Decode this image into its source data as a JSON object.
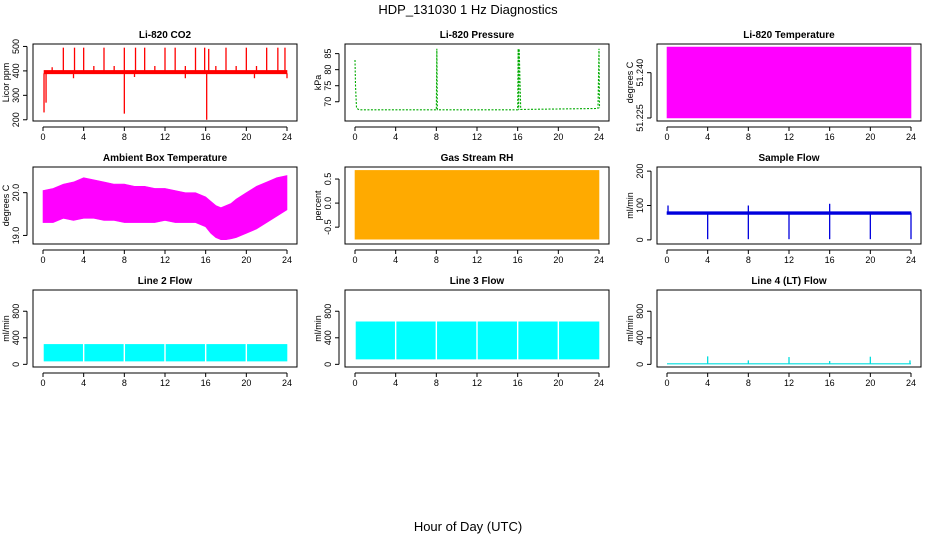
{
  "figure": {
    "title": "HDP_131030  1 Hz Diagnostics",
    "xlabel": "Hour of Day (UTC)"
  },
  "chart_data": [
    {
      "id": "co2",
      "type": "line",
      "title": "Li-820 CO2",
      "ylabel": "Licor ppm",
      "color": "#ff0000",
      "xlim": [
        0,
        24
      ],
      "ylim": [
        195,
        510
      ],
      "xticks": [
        "0",
        "4",
        "8",
        "12",
        "16",
        "20",
        "24"
      ],
      "xtick_values": [
        0,
        4,
        8,
        12,
        16,
        20,
        24
      ],
      "yticks": [
        "200",
        "300",
        "400",
        "500"
      ],
      "ytick_values": [
        200,
        300,
        400,
        500
      ],
      "series": [
        {
          "name": "band",
          "style": "band",
          "x": [
            0.1,
            24
          ],
          "low": [
            388,
            388
          ],
          "high": [
            402,
            402
          ]
        },
        {
          "name": "spikes_up",
          "style": "spikes",
          "base": 395,
          "x": [
            0.9,
            2,
            3.1,
            4,
            5,
            6,
            7,
            8,
            9.1,
            10,
            11,
            12,
            13,
            14,
            15,
            15.9,
            16.3,
            17,
            18,
            19,
            20,
            21,
            22,
            23.1,
            23.8
          ],
          "y": [
            415,
            495,
            495,
            495,
            420,
            495,
            420,
            495,
            495,
            495,
            420,
            495,
            495,
            420,
            495,
            495,
            490,
            420,
            495,
            420,
            495,
            420,
            495,
            495,
            495
          ]
        },
        {
          "name": "spikes_down",
          "style": "spikes",
          "base": 390,
          "x": [
            0.1,
            0.3,
            8,
            16.1,
            24,
            3,
            9,
            14,
            20.8
          ],
          "y": [
            230,
            270,
            225,
            200,
            370,
            370,
            375,
            370,
            370
          ]
        }
      ]
    },
    {
      "id": "pressure",
      "type": "line",
      "title": "Li-820 Pressure",
      "ylabel": "kPa",
      "color": "#00aa00",
      "xlim": [
        0,
        24
      ],
      "ylim": [
        64,
        88
      ],
      "xticks": [
        "0",
        "4",
        "8",
        "12",
        "16",
        "20",
        "24"
      ],
      "xtick_values": [
        0,
        4,
        8,
        12,
        16,
        20,
        24
      ],
      "yticks": [
        "70",
        "75",
        "80",
        "85"
      ],
      "ytick_values": [
        70,
        75,
        80,
        85
      ],
      "series": [
        {
          "name": "pressure",
          "style": "dashed",
          "x": [
            0,
            0.05,
            0.15,
            0.4,
            8,
            8.05,
            8.1,
            8.15,
            16,
            16.05,
            16.1,
            16.15,
            16.3,
            23.9,
            24,
            24.05
          ],
          "y": [
            83,
            75,
            68,
            67.5,
            67.5,
            86.5,
            67.5,
            67.5,
            67.5,
            86.5,
            67.5,
            86.5,
            67.6,
            67.9,
            86.5,
            68
          ]
        }
      ]
    },
    {
      "id": "licor_temp",
      "type": "area",
      "title": "Li-820 Temperature",
      "ylabel": "degrees C",
      "color": "#ff00ff",
      "xlim": [
        0,
        24
      ],
      "ylim": [
        51.224,
        51.2495
      ],
      "xticks": [
        "0",
        "4",
        "8",
        "12",
        "16",
        "20",
        "24"
      ],
      "xtick_values": [
        0,
        4,
        8,
        12,
        16,
        20,
        24
      ],
      "yticks": [
        "51.225",
        "51.240"
      ],
      "ytick_values": [
        51.225,
        51.24
      ],
      "series": [
        {
          "name": "temperature",
          "style": "band",
          "x": [
            0,
            24
          ],
          "low": [
            51.225,
            51.225
          ],
          "high": [
            51.2485,
            51.2485
          ]
        }
      ]
    },
    {
      "id": "ambient",
      "type": "area",
      "title": "Ambient Box Temperature",
      "ylabel": "degrees C",
      "color": "#ff00ff",
      "xlim": [
        0,
        24
      ],
      "ylim": [
        18.8,
        20.6
      ],
      "xticks": [
        "0",
        "4",
        "8",
        "12",
        "16",
        "20",
        "24"
      ],
      "xtick_values": [
        0,
        4,
        8,
        12,
        16,
        20,
        24
      ],
      "yticks": [
        "19.0",
        "20.0"
      ],
      "ytick_values": [
        19.0,
        20.0
      ],
      "series": [
        {
          "name": "temperature",
          "style": "band",
          "x": [
            0,
            1,
            2,
            3,
            4,
            5,
            6,
            7,
            8,
            9,
            10,
            11,
            12,
            13,
            14,
            15,
            16,
            16.5,
            17,
            17.5,
            18,
            18.5,
            19,
            20,
            21,
            22,
            23,
            24
          ],
          "low": [
            19.3,
            19.3,
            19.4,
            19.35,
            19.4,
            19.4,
            19.35,
            19.35,
            19.3,
            19.3,
            19.3,
            19.3,
            19.35,
            19.3,
            19.3,
            19.3,
            19.2,
            19.05,
            18.95,
            18.9,
            18.9,
            18.92,
            18.95,
            19.05,
            19.15,
            19.3,
            19.45,
            19.6
          ],
          "high": [
            20.05,
            20.1,
            20.2,
            20.25,
            20.35,
            20.3,
            20.25,
            20.2,
            20.2,
            20.15,
            20.15,
            20.1,
            20.1,
            20.05,
            20.0,
            20.0,
            19.9,
            19.8,
            19.7,
            19.65,
            19.7,
            19.75,
            19.85,
            20.0,
            20.15,
            20.25,
            20.35,
            20.4
          ]
        }
      ]
    },
    {
      "id": "rh",
      "type": "area",
      "title": "Gas Stream RH",
      "ylabel": "percent",
      "color": "#ffaa00",
      "xlim": [
        0,
        24
      ],
      "ylim": [
        -0.85,
        0.75
      ],
      "xticks": [
        "0",
        "4",
        "8",
        "12",
        "16",
        "20",
        "24"
      ],
      "xtick_values": [
        0,
        4,
        8,
        12,
        16,
        20,
        24
      ],
      "yticks": [
        "-0.5",
        "0.0",
        "0.5"
      ],
      "ytick_values": [
        -0.5,
        0.0,
        0.5
      ],
      "series": [
        {
          "name": "rh",
          "style": "band",
          "x": [
            0,
            24
          ],
          "low": [
            -0.75,
            -0.75
          ],
          "high": [
            0.68,
            0.68
          ]
        }
      ]
    },
    {
      "id": "sample_flow",
      "type": "line",
      "title": "Sample Flow",
      "ylabel": "ml/min",
      "color": "#0000dd",
      "xlim": [
        0,
        24
      ],
      "ylim": [
        -12,
        212
      ],
      "xticks": [
        "0",
        "4",
        "8",
        "12",
        "16",
        "20",
        "24"
      ],
      "xtick_values": [
        0,
        4,
        8,
        12,
        16,
        20,
        24
      ],
      "yticks": [
        "0",
        "100",
        "200"
      ],
      "ytick_values": [
        0,
        100,
        200
      ],
      "series": [
        {
          "name": "flow",
          "style": "band",
          "x": [
            0,
            24
          ],
          "low": [
            74,
            74
          ],
          "high": [
            82,
            82
          ]
        },
        {
          "name": "spikes_down",
          "style": "spikes",
          "base": 78,
          "x": [
            4,
            8,
            12,
            16,
            20,
            24
          ],
          "y": [
            2,
            2,
            2,
            2,
            2,
            2
          ]
        },
        {
          "name": "spikes_up",
          "style": "spikes",
          "base": 80,
          "x": [
            0.1,
            8,
            16
          ],
          "y": [
            100,
            100,
            105
          ]
        }
      ]
    },
    {
      "id": "line2",
      "type": "area",
      "title": "Line 2 Flow",
      "ylabel": "ml/min",
      "color": "#00ffff",
      "xlim": [
        0,
        24
      ],
      "ylim": [
        -40,
        1120
      ],
      "xticks": [
        "0",
        "4",
        "8",
        "12",
        "16",
        "20",
        "24"
      ],
      "xtick_values": [
        0,
        4,
        8,
        12,
        16,
        20,
        24
      ],
      "yticks": [
        "0",
        "400",
        "800"
      ],
      "ytick_values": [
        0,
        400,
        800
      ],
      "series": [
        {
          "name": "flow",
          "style": "band",
          "x": [
            0.1,
            24
          ],
          "low": [
            50,
            50
          ],
          "high": [
            300,
            300
          ]
        }
      ]
    },
    {
      "id": "line3",
      "type": "area",
      "title": "Line 3 Flow",
      "ylabel": "ml/min",
      "color": "#00ffff",
      "xlim": [
        0,
        24
      ],
      "ylim": [
        -40,
        1120
      ],
      "xticks": [
        "0",
        "4",
        "8",
        "12",
        "16",
        "20",
        "24"
      ],
      "xtick_values": [
        0,
        4,
        8,
        12,
        16,
        20,
        24
      ],
      "yticks": [
        "0",
        "400",
        "800"
      ],
      "ytick_values": [
        0,
        400,
        800
      ],
      "series": [
        {
          "name": "flow",
          "style": "band",
          "x": [
            0.1,
            24
          ],
          "low": [
            80,
            80
          ],
          "high": [
            640,
            640
          ]
        }
      ]
    },
    {
      "id": "line4",
      "type": "line",
      "title": "Line 4 (LT) Flow",
      "ylabel": "ml/min",
      "color": "#00dddd",
      "xlim": [
        0,
        24
      ],
      "ylim": [
        -40,
        1120
      ],
      "xticks": [
        "0",
        "4",
        "8",
        "12",
        "16",
        "20",
        "24"
      ],
      "xtick_values": [
        0,
        4,
        8,
        12,
        16,
        20,
        24
      ],
      "yticks": [
        "0",
        "400",
        "800"
      ],
      "ytick_values": [
        0,
        400,
        800
      ],
      "series": [
        {
          "name": "flow",
          "style": "line",
          "x": [
            0,
            24
          ],
          "y": [
            8,
            8
          ]
        },
        {
          "name": "spikes_up",
          "style": "spikes",
          "base": 8,
          "x": [
            4,
            8,
            12,
            16,
            20,
            23.9
          ],
          "y": [
            120,
            60,
            110,
            50,
            115,
            60
          ]
        }
      ]
    }
  ]
}
